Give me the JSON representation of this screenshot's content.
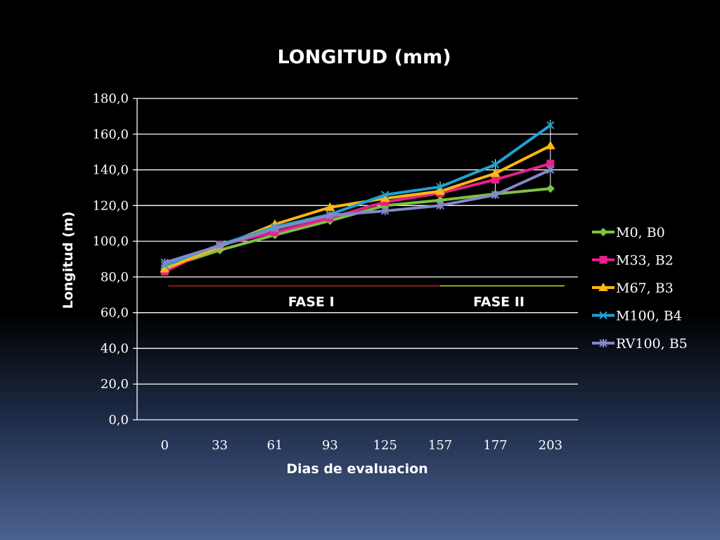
{
  "chart_data": {
    "type": "line",
    "title": "LONGITUD (mm)",
    "xlabel": "Dias de evaluacion",
    "ylabel": "Longitud  (m)",
    "categories": [
      "0",
      "33",
      "61",
      "93",
      "125",
      "157",
      "177",
      "203"
    ],
    "ylim": [
      0,
      180
    ],
    "yticks": [
      "0,0",
      "20,0",
      "40,0",
      "60,0",
      "80,0",
      "100,0",
      "120,0",
      "140,0",
      "160,0",
      "180,0"
    ],
    "grid": true,
    "legend_position": "right",
    "series": [
      {
        "name": "M0, B0",
        "color": "#7dc242",
        "marker": "diamond",
        "values": [
          85,
          95,
          103.5,
          111.5,
          120,
          123,
          126.5,
          129.5
        ]
      },
      {
        "name": "M33, B2",
        "color": "#e6218a",
        "marker": "square",
        "values": [
          83,
          98,
          105,
          113,
          122,
          127,
          134.5,
          143.5
        ]
      },
      {
        "name": "M67, B3",
        "color": "#ffb612",
        "marker": "triangle",
        "values": [
          84.5,
          97,
          109.5,
          119,
          124,
          128,
          138,
          153.5
        ]
      },
      {
        "name": "M100, B4",
        "color": "#1fa2d4",
        "marker": "x",
        "values": [
          86.5,
          98,
          108,
          115,
          126,
          130.5,
          143,
          165
        ]
      },
      {
        "name": "RV100, B5",
        "color": "#8487c9",
        "marker": "star",
        "values": [
          88,
          97.5,
          107,
          114.5,
          117,
          120,
          126,
          140
        ]
      }
    ],
    "annotations": [
      {
        "text": "FASE I",
        "line_color": "#b22222",
        "from_category": "0",
        "to_category": "157"
      },
      {
        "text": "FASE II",
        "line_color": "#c9c832",
        "from_category": "157",
        "to_category": "203"
      }
    ],
    "line_y_value": 75
  }
}
